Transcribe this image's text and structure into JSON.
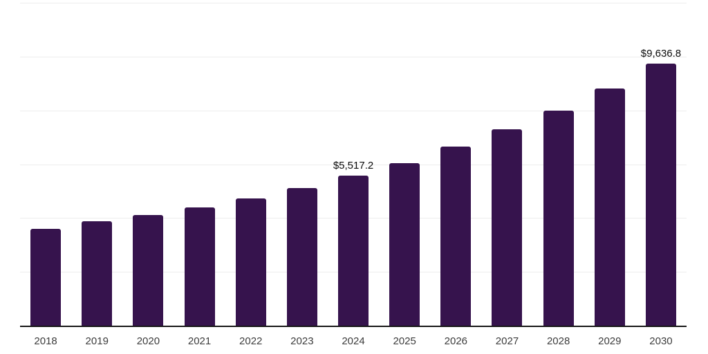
{
  "chart_data": {
    "type": "bar",
    "categories": [
      "2018",
      "2019",
      "2020",
      "2021",
      "2022",
      "2023",
      "2024",
      "2025",
      "2026",
      "2027",
      "2028",
      "2029",
      "2030"
    ],
    "values": [
      3560,
      3840,
      4080,
      4360,
      4680,
      5060,
      5517.2,
      5990,
      6590,
      7230,
      7920,
      8720,
      9636.8
    ],
    "data_labels": [
      {
        "index": 6,
        "text": "$5,517.2"
      },
      {
        "index": 12,
        "text": "$9,636.8"
      }
    ],
    "ylim": [
      0,
      11885
    ],
    "y_intervals": 6,
    "grid": true,
    "legend": false,
    "colors": {
      "bar": "#36134d",
      "axis": "#161616",
      "gridline": "#ededed",
      "tick_label": "#3c3c3c",
      "data_label": "#0a0a0a",
      "background": "#ffffff"
    }
  }
}
